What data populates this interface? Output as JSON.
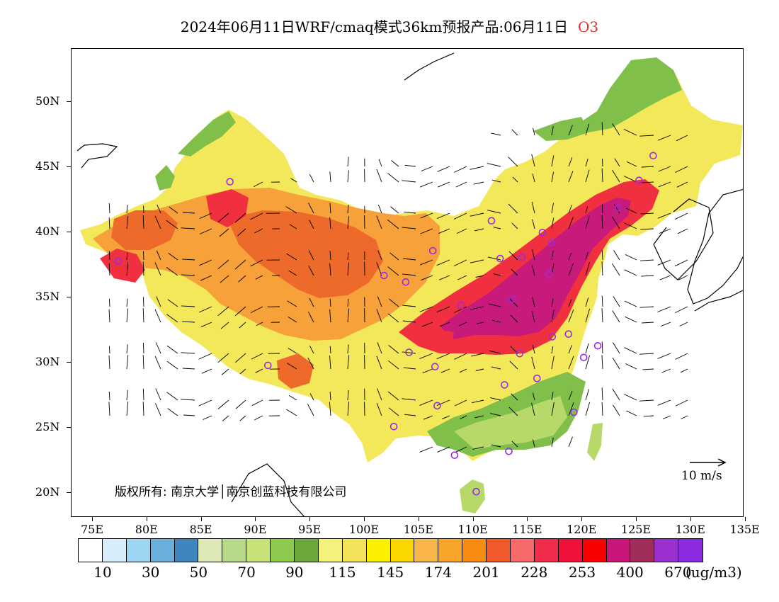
{
  "title": {
    "main": "2024年06月11日WRF/cmaq模式36km预报产品:06月11日",
    "pollutant": "O3"
  },
  "axes": {
    "lat_labels": [
      "50N",
      "45N",
      "40N",
      "35N",
      "30N",
      "25N",
      "20N"
    ],
    "lon_labels": [
      "75E",
      "80E",
      "85E",
      "90E",
      "95E",
      "100E",
      "105E",
      "110E",
      "115E",
      "120E",
      "125E",
      "130E",
      "135E"
    ]
  },
  "copyright": "版权所有: 南京大学│南京创蓝科技有限公司",
  "wind_reference": {
    "label": "10 m/s",
    "speed_ms": 10
  },
  "colorbar": {
    "colors": [
      "#ffffff",
      "#d6eefa",
      "#9dd6f2",
      "#6aaedb",
      "#3f86bf",
      "#dde9b5",
      "#b9d98a",
      "#c8e27a",
      "#8ec94f",
      "#6aa83a",
      "#f3f27a",
      "#f2e35a",
      "#fbf000",
      "#fbd800",
      "#f8b64a",
      "#f8a62a",
      "#f78c12",
      "#ef5a2a",
      "#f86a6a",
      "#f02c4a",
      "#f0103a",
      "#fb0000",
      "#c8157a",
      "#a02d5a",
      "#9b30cf",
      "#8a2be2"
    ],
    "labels": [
      "10",
      "30",
      "50",
      "70",
      "90",
      "115",
      "145",
      "174",
      "201",
      "228",
      "253",
      "400",
      "670"
    ],
    "unit": "(ug/m3)"
  },
  "map": {
    "lon_range": [
      73,
      135
    ],
    "lat_range": [
      18,
      54
    ],
    "colors": {
      "land_base": "#f3e85a",
      "green_low": "#7fbf4a",
      "green_light": "#b7d96a",
      "orange": "#f6a13a",
      "dark_orange": "#ee6a2a",
      "red": "#f0303f",
      "magenta": "#c81a7a",
      "coast": "#000000",
      "station": "#9a2be2"
    },
    "stations": [
      {
        "lon": 87.6,
        "lat": 43.8
      },
      {
        "lon": 77.3,
        "lat": 37.7
      },
      {
        "lon": 91.1,
        "lat": 29.7
      },
      {
        "lon": 101.8,
        "lat": 36.6
      },
      {
        "lon": 103.8,
        "lat": 36.1
      },
      {
        "lon": 106.3,
        "lat": 38.5
      },
      {
        "lon": 111.7,
        "lat": 40.8
      },
      {
        "lon": 112.5,
        "lat": 37.9
      },
      {
        "lon": 114.5,
        "lat": 38.0
      },
      {
        "lon": 116.4,
        "lat": 39.9
      },
      {
        "lon": 117.2,
        "lat": 39.1
      },
      {
        "lon": 117.0,
        "lat": 36.7
      },
      {
        "lon": 113.6,
        "lat": 34.8
      },
      {
        "lon": 108.9,
        "lat": 34.3
      },
      {
        "lon": 104.1,
        "lat": 30.7
      },
      {
        "lon": 106.5,
        "lat": 29.6
      },
      {
        "lon": 114.3,
        "lat": 30.6
      },
      {
        "lon": 117.3,
        "lat": 31.9
      },
      {
        "lon": 118.8,
        "lat": 32.1
      },
      {
        "lon": 121.5,
        "lat": 31.2
      },
      {
        "lon": 120.2,
        "lat": 30.3
      },
      {
        "lon": 115.9,
        "lat": 28.7
      },
      {
        "lon": 112.9,
        "lat": 28.2
      },
      {
        "lon": 106.7,
        "lat": 26.6
      },
      {
        "lon": 102.7,
        "lat": 25.0
      },
      {
        "lon": 108.3,
        "lat": 22.8
      },
      {
        "lon": 113.3,
        "lat": 23.1
      },
      {
        "lon": 119.3,
        "lat": 26.1
      },
      {
        "lon": 110.3,
        "lat": 20.0
      },
      {
        "lon": 123.4,
        "lat": 41.8
      },
      {
        "lon": 125.3,
        "lat": 43.9
      },
      {
        "lon": 126.6,
        "lat": 45.8
      }
    ]
  }
}
